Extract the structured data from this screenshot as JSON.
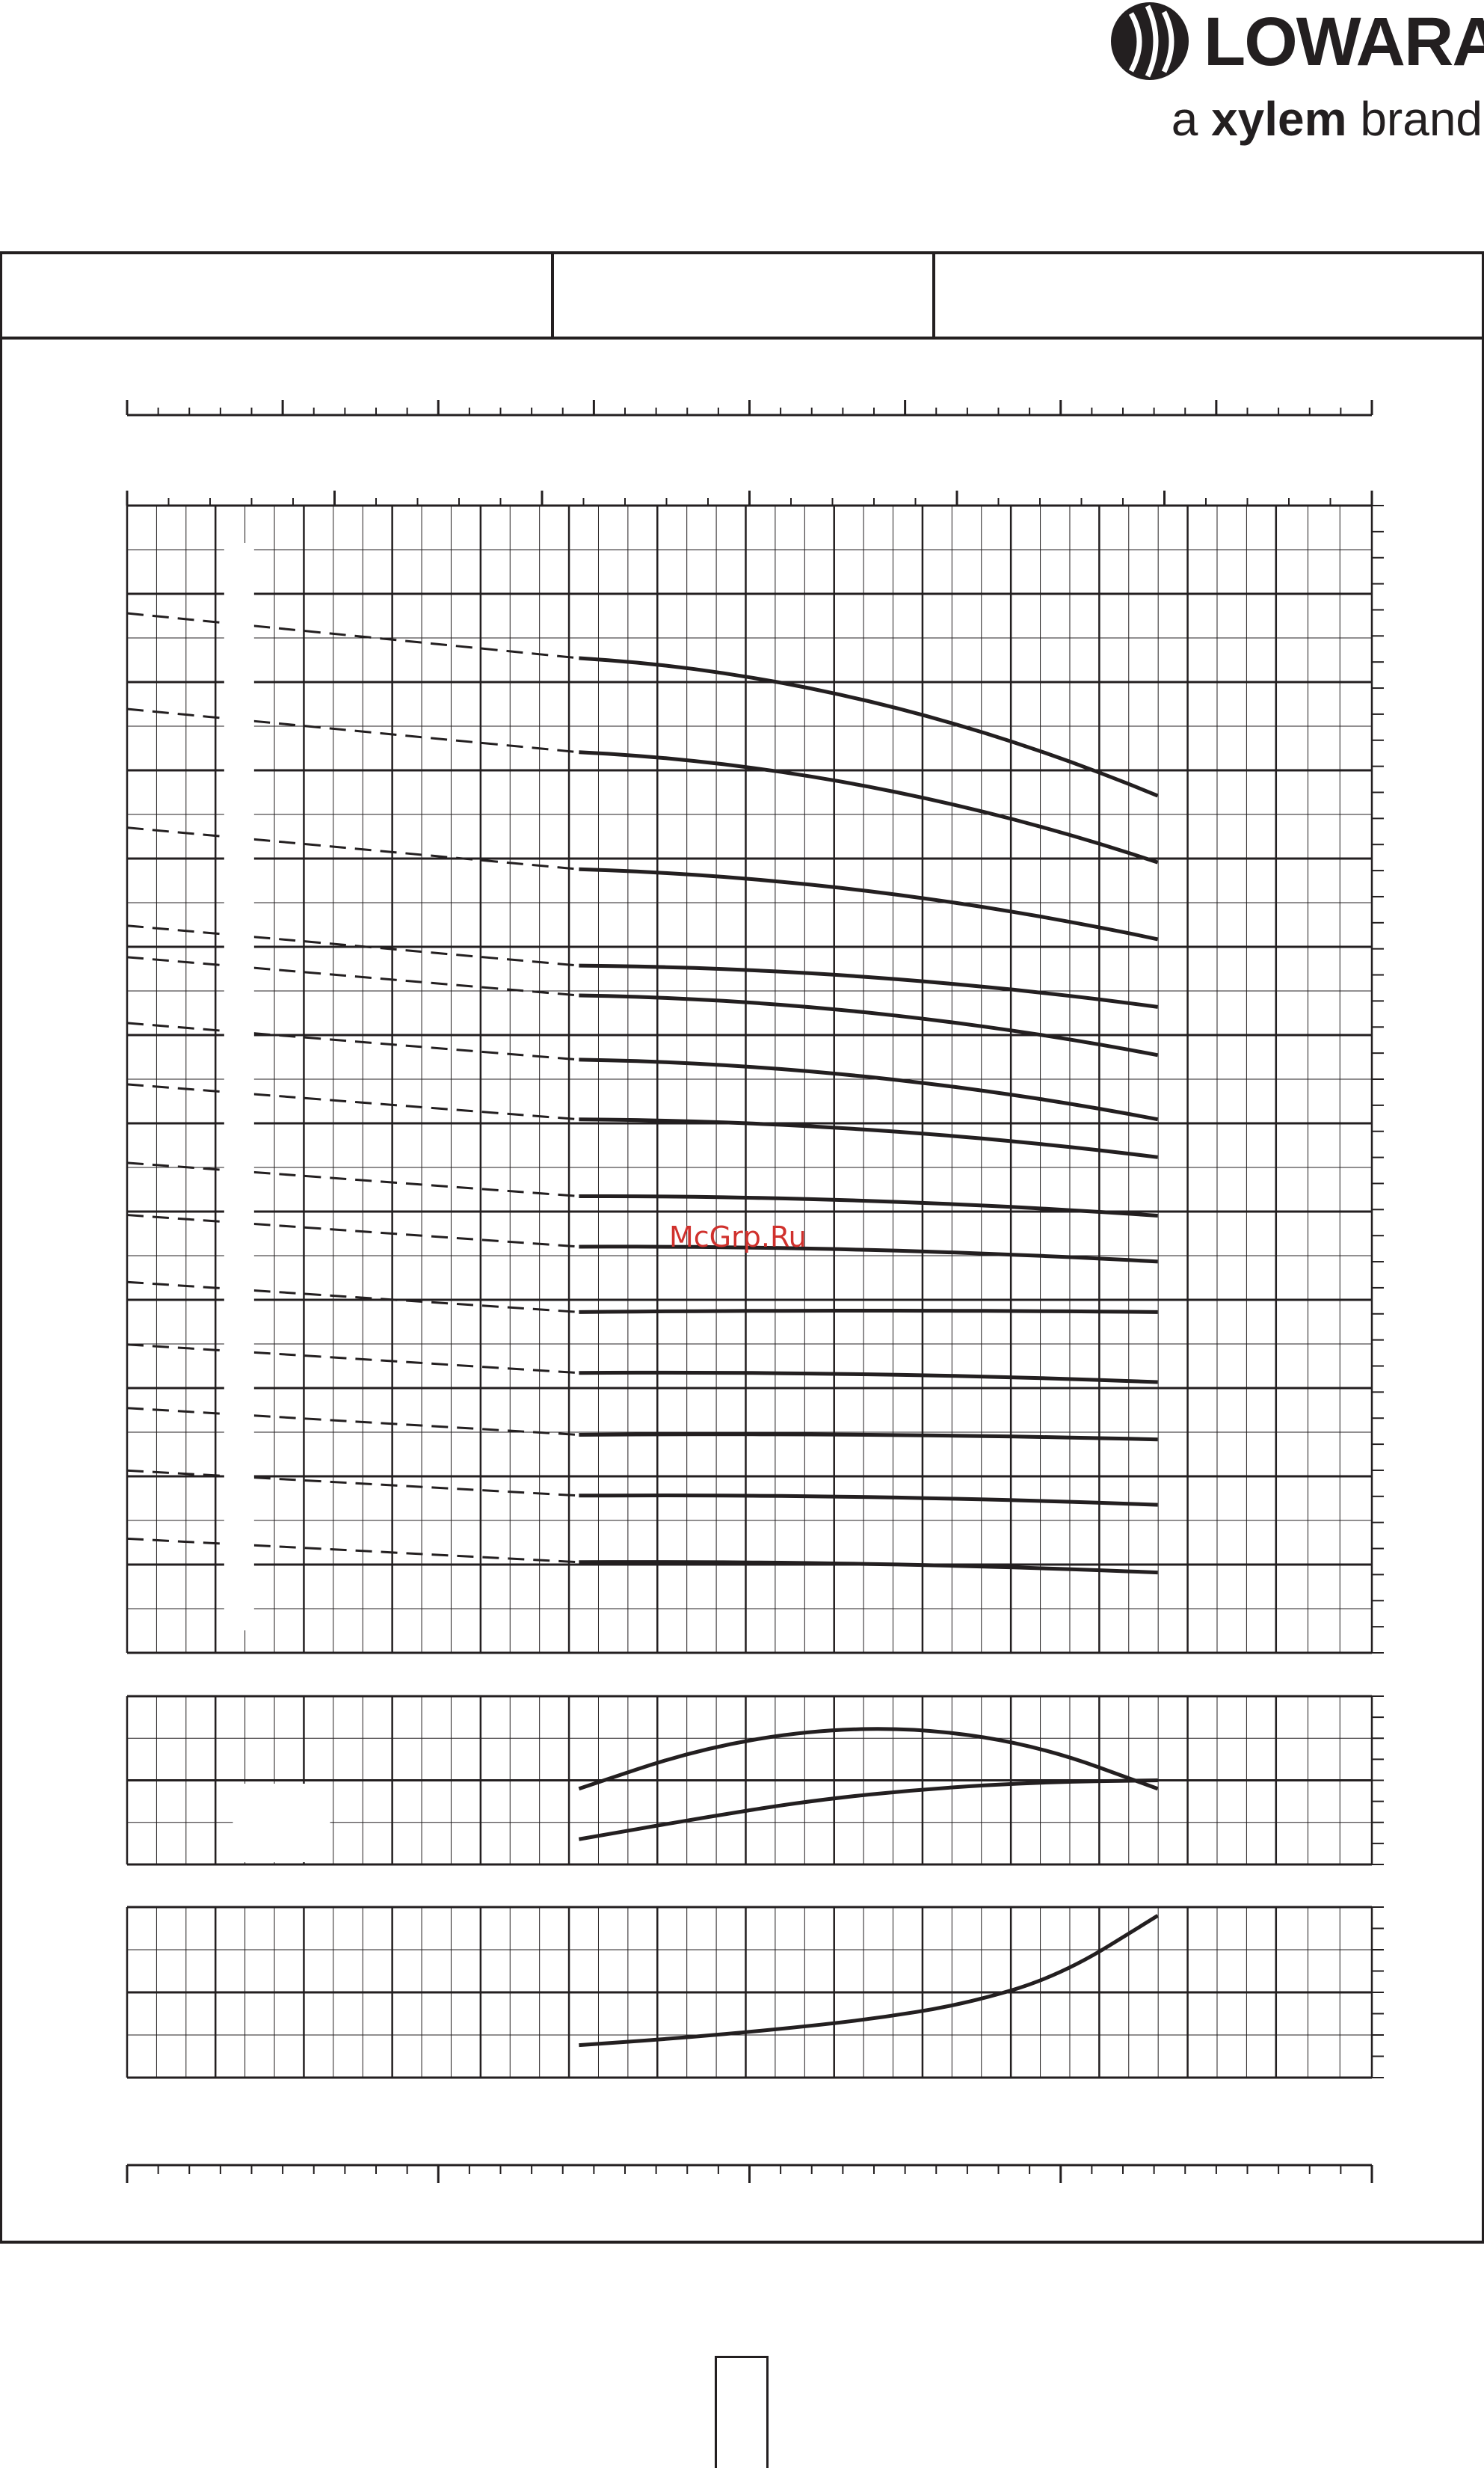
{
  "brand": {
    "name": "LOWARA",
    "tagline_prefix": "a ",
    "tagline_bold": "xylem",
    "tagline_suffix": " brand"
  },
  "watermark": "McGrp.Ru",
  "header_cells": [
    "",
    "",
    ""
  ],
  "page_number": "",
  "colors": {
    "ink": "#231f20",
    "grid": "#231f20",
    "watermark": "#d0312d"
  },
  "chart_data": [
    {
      "type": "line",
      "panel": "head",
      "title": "",
      "xlabel": "",
      "ylabel": "",
      "xlim": [
        0,
        100
      ],
      "ylim": [
        0,
        100
      ],
      "grid": true,
      "note": "",
      "series": [
        {
          "x": [
            40,
            100
          ],
          "solid_from": 40,
          "values": [
            86.7,
            74.7
          ],
          "curve": "steep1"
        },
        {
          "x": [
            40,
            100
          ],
          "values": [
            78.5,
            68.9
          ]
        },
        {
          "x": [
            40,
            100
          ],
          "values": [
            68.3,
            62.2
          ]
        },
        {
          "x": [
            40,
            100
          ],
          "values": [
            59.9,
            58.3
          ]
        },
        {
          "x": [
            40,
            100
          ],
          "values": [
            57.3,
            54.1
          ]
        },
        {
          "x": [
            40,
            100
          ],
          "values": [
            51.7,
            48.5
          ]
        },
        {
          "x": [
            40,
            100
          ],
          "values": [
            46.5,
            45.2
          ]
        },
        {
          "x": [
            40,
            100
          ],
          "values": [
            39.8,
            40.1
          ]
        },
        {
          "x": [
            40,
            100
          ],
          "values": [
            35.4,
            36.1
          ]
        },
        {
          "x": [
            40,
            100
          ],
          "values": [
            29.7,
            31.7
          ]
        },
        {
          "x": [
            40,
            100
          ],
          "values": [
            24.4,
            25.6
          ]
        },
        {
          "x": [
            40,
            100
          ],
          "values": [
            19.0,
            20.6
          ]
        },
        {
          "x": [
            40,
            100
          ],
          "values": [
            13.7,
            14.9
          ]
        },
        {
          "x": [
            40,
            100
          ],
          "values": [
            7.9,
            9.0
          ]
        }
      ]
    },
    {
      "type": "line",
      "panel": "efficiency",
      "title": "",
      "xlabel": "",
      "ylabel": "",
      "xlim": [
        0,
        100
      ],
      "ylim": [
        0,
        100
      ],
      "grid": true,
      "series": [
        {
          "x": [
            40,
            52,
            64,
            76,
            88,
            100
          ],
          "values": [
            45,
            68,
            80,
            81,
            70,
            45
          ]
        },
        {
          "x": [
            40,
            52,
            64,
            76,
            88,
            100
          ],
          "values": [
            15,
            27,
            38,
            45,
            49,
            50
          ]
        }
      ]
    },
    {
      "type": "line",
      "panel": "npsh",
      "title": "",
      "xlabel": "",
      "ylabel": "",
      "xlim": [
        0,
        100
      ],
      "ylim": [
        0,
        100
      ],
      "grid": true,
      "series": [
        {
          "x": [
            40,
            50,
            60,
            70,
            80,
            90,
            100
          ],
          "values": [
            19,
            23,
            28,
            34,
            43,
            60,
            95
          ]
        }
      ]
    }
  ]
}
